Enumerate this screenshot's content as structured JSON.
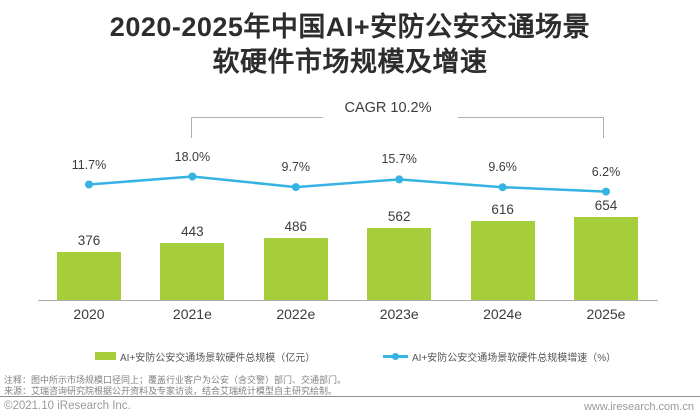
{
  "title": {
    "line1": "2020-2025年中国AI+安防公安交通场景",
    "line2": "软硬件市场规模及增速"
  },
  "chart_data": {
    "type": "bar",
    "categories": [
      "2020",
      "2021e",
      "2022e",
      "2023e",
      "2024e",
      "2025e"
    ],
    "series": [
      {
        "name": "AI+安防公安交通场景软硬件总规模（亿元）",
        "type": "bar",
        "values": [
          376,
          443,
          486,
          562,
          616,
          654
        ],
        "value_labels": [
          "376",
          "443",
          "486",
          "562",
          "616",
          "654"
        ],
        "color": "#A6CE3A"
      },
      {
        "name": "AI+安防公安交通场景软硬件总规模增速（%）",
        "type": "line",
        "values": [
          11.7,
          18.0,
          9.7,
          15.7,
          9.6,
          6.2
        ],
        "value_labels": [
          "11.7%",
          "18.0%",
          "9.7%",
          "15.7%",
          "9.6%",
          "6.2%"
        ],
        "color": "#35B3E3"
      }
    ],
    "annotations": [
      {
        "label": "CAGR 10.2%",
        "from": "2021e",
        "to": "2025e"
      }
    ],
    "legend_position": "bottom",
    "grid": false
  },
  "legend": [
    {
      "label": "AI+安防公安交通场景软硬件总规模（亿元）",
      "swatch_color": "#A6CE3A"
    },
    {
      "label": "AI+安防公安交通场景软硬件总规模增速（%）",
      "swatch_color": "#35B3E3"
    }
  ],
  "notes": {
    "line1": "注释：图中所示市场规模口径同上；覆盖行业客户为公安（含交警）部门、交通部门。",
    "line2": "来源：艾瑞咨询研究院根据公开资料及专家访谈，结合艾瑞统计模型自主研究绘制。"
  },
  "footer": {
    "left": "©2021.10 iResearch Inc.",
    "right": "www.iresearch.com.cn"
  }
}
